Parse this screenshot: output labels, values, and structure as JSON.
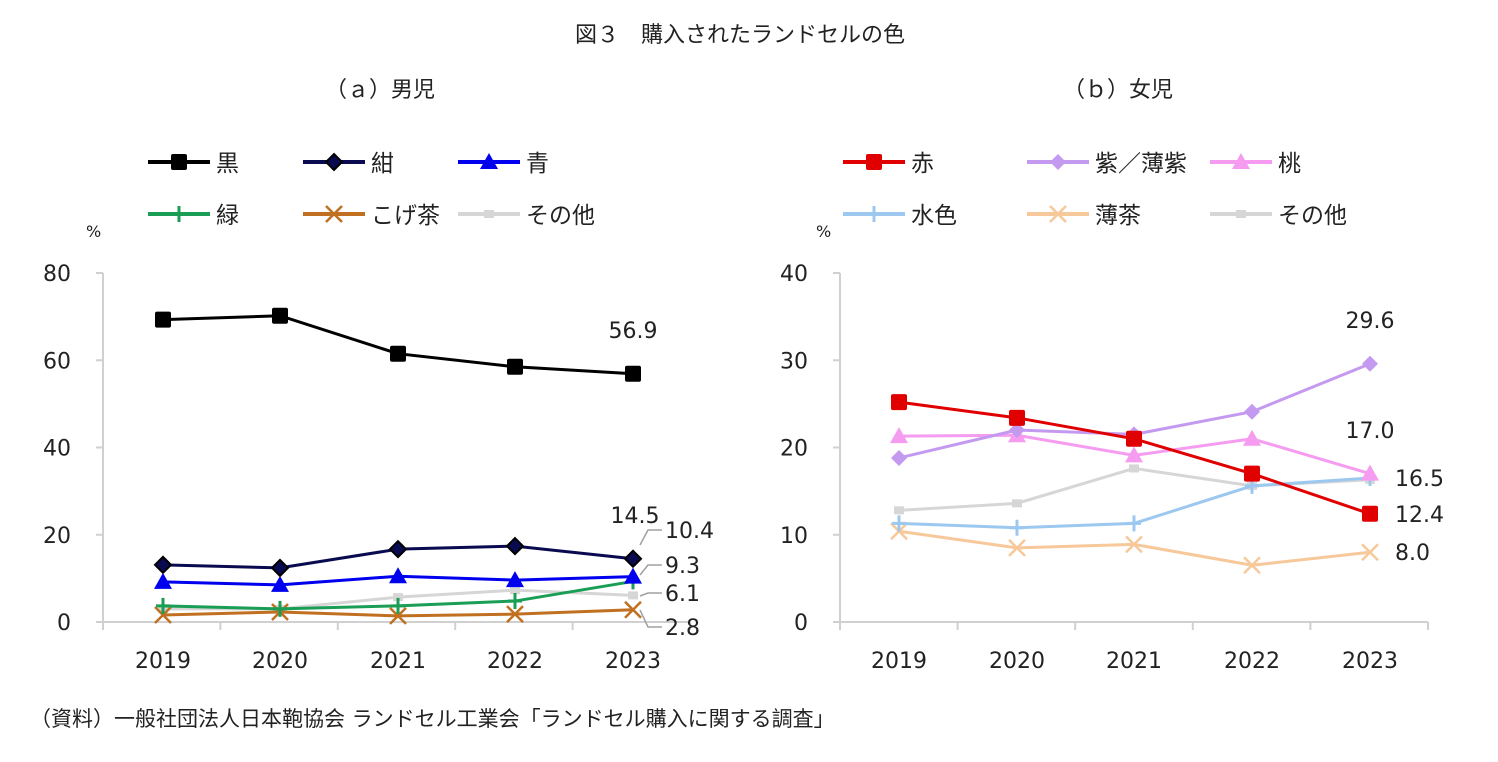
{
  "title": "図３　購入されたランドセルの色",
  "source": "（資料）一般社団法人日本鞄協会 ランドセル工業会「ランドセル購入に関する調査」",
  "chart_data": [
    {
      "type": "line",
      "title": "（ａ）男児",
      "ylabel": "%",
      "ylim": [
        0,
        80
      ],
      "yticks": [
        0,
        20,
        40,
        60,
        80
      ],
      "categories": [
        "2019",
        "2020",
        "2021",
        "2022",
        "2023"
      ],
      "grid": false,
      "legend": "top",
      "series": [
        {
          "name": "黒",
          "color": "#000000",
          "marker": "square",
          "values": [
            69.3,
            70.2,
            61.5,
            58.5,
            56.9
          ],
          "last_label": "56.9"
        },
        {
          "name": "紺",
          "color": "#0a0a50",
          "marker": "diamond",
          "values": [
            13.1,
            12.4,
            16.7,
            17.4,
            14.5
          ],
          "last_label": "14.5"
        },
        {
          "name": "青",
          "color": "#0000ee",
          "marker": "triangle",
          "values": [
            9.2,
            8.5,
            10.5,
            9.6,
            10.4
          ],
          "last_label": "10.4"
        },
        {
          "name": "緑",
          "color": "#1a9e55",
          "marker": "plus",
          "values": [
            3.7,
            3.0,
            3.7,
            4.8,
            9.3
          ],
          "last_label": "9.3"
        },
        {
          "name": "こげ茶",
          "color": "#c07020",
          "marker": "x",
          "values": [
            1.6,
            2.3,
            1.4,
            1.8,
            2.8
          ],
          "last_label": "2.8"
        },
        {
          "name": "その他",
          "color": "#d6d6d6",
          "marker": "dash",
          "values": [
            3.0,
            3.0,
            5.7,
            7.3,
            6.1
          ],
          "last_label": "6.1"
        }
      ]
    },
    {
      "type": "line",
      "title": "（ｂ）女児",
      "ylabel": "%",
      "ylim": [
        0,
        40
      ],
      "yticks": [
        0,
        10,
        20,
        30,
        40
      ],
      "categories": [
        "2019",
        "2020",
        "2021",
        "2022",
        "2023"
      ],
      "grid": false,
      "legend": "top",
      "series": [
        {
          "name": "赤",
          "color": "#e00000",
          "marker": "square",
          "values": [
            25.2,
            23.4,
            21.0,
            17.0,
            12.4
          ],
          "last_label": "12.4"
        },
        {
          "name": "紫／薄紫",
          "color": "#c49af0",
          "marker": "diamond",
          "values": [
            18.8,
            22.0,
            21.5,
            24.1,
            29.6
          ],
          "last_label": "29.6"
        },
        {
          "name": "桃",
          "color": "#f59cf0",
          "marker": "triangle",
          "values": [
            21.3,
            21.4,
            19.1,
            21.0,
            17.0
          ],
          "last_label": "17.0"
        },
        {
          "name": "水色",
          "color": "#9cc8f0",
          "marker": "plus",
          "values": [
            11.3,
            10.8,
            11.3,
            15.6,
            16.5
          ],
          "last_label": "16.5"
        },
        {
          "name": "薄茶",
          "color": "#f7c89a",
          "marker": "x",
          "values": [
            10.4,
            8.5,
            8.9,
            6.5,
            8.0
          ],
          "last_label": "8.0"
        },
        {
          "name": "その他",
          "color": "#d6d6d6",
          "marker": "dash",
          "values": [
            12.8,
            13.6,
            17.6,
            15.6,
            16.3
          ],
          "last_label": ""
        }
      ]
    }
  ]
}
